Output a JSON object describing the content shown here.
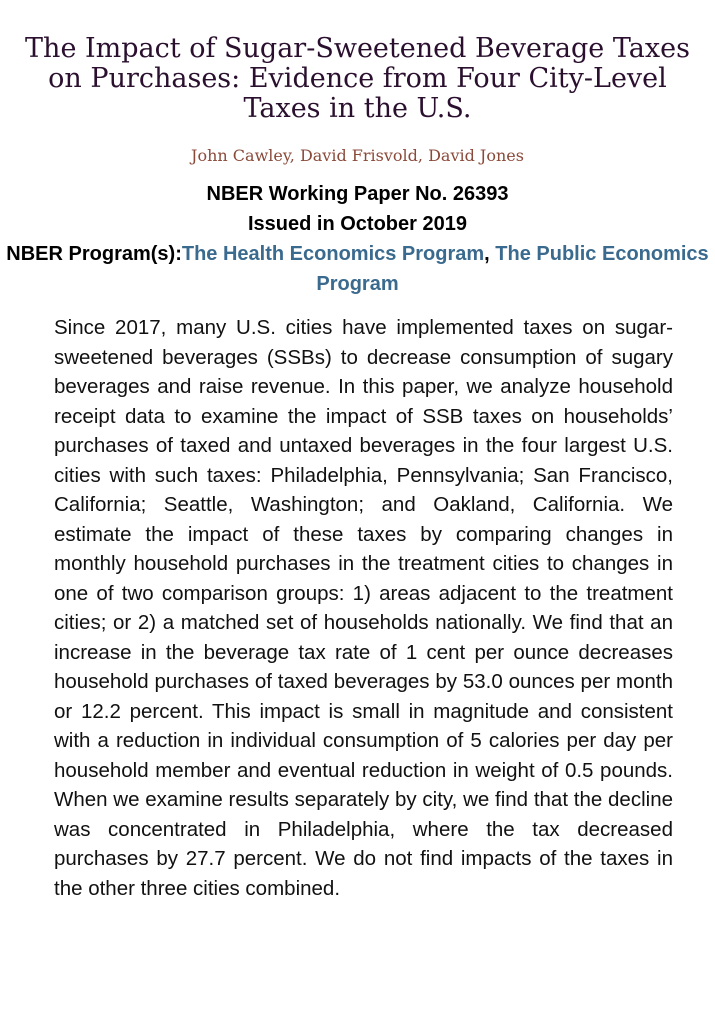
{
  "paper": {
    "title": "The Impact of Sugar-Sweetened Beverage Taxes on Purchases: Evidence from Four City-Level Taxes in the U.S.",
    "authors": "John Cawley, David Frisvold, David Jones",
    "working_paper": "NBER Working Paper No. 26393",
    "issued": "Issued in October 2019",
    "programs_label": "NBER Program(s):",
    "programs": [
      {
        "name": "The Health Economics Program"
      },
      {
        "name": "The Public Economics Program"
      }
    ],
    "program_separator": ", ",
    "abstract": "Since 2017, many U.S. cities have implemented taxes on sugar-sweetened beverages (SSBs) to decrease consumption of sugary beverages and raise revenue. In this paper, we analyze household receipt data to examine the impact of SSB taxes on households’ purchases of taxed and untaxed beverages in the four largest U.S. cities with such taxes: Philadelphia, Pennsylvania; San Francisco, California; Seattle, Washington; and Oakland, California. We estimate the impact of these taxes by comparing changes in monthly household purchases in the treatment cities to changes in one of two comparison groups: 1) areas adjacent to the treatment cities; or 2) a matched set of households nationally. We find that an increase in the beverage tax rate of 1 cent per ounce decreases household purchases of taxed beverages by 53.0 ounces per month or 12.2 percent. This impact is small in magnitude and consistent with a reduction in individual consumption of 5 calories per day per household member and eventual reduction in weight of 0.5 pounds. When we examine results separately by city, we find that the decline was concentrated in Philadelphia, where the tax decreased purchases by 27.7 percent. We do not find impacts of the taxes in the other three cities combined."
  },
  "colors": {
    "title": "#2a0f2e",
    "authors": "#8a4a3a",
    "link": "#3a6a8e"
  }
}
